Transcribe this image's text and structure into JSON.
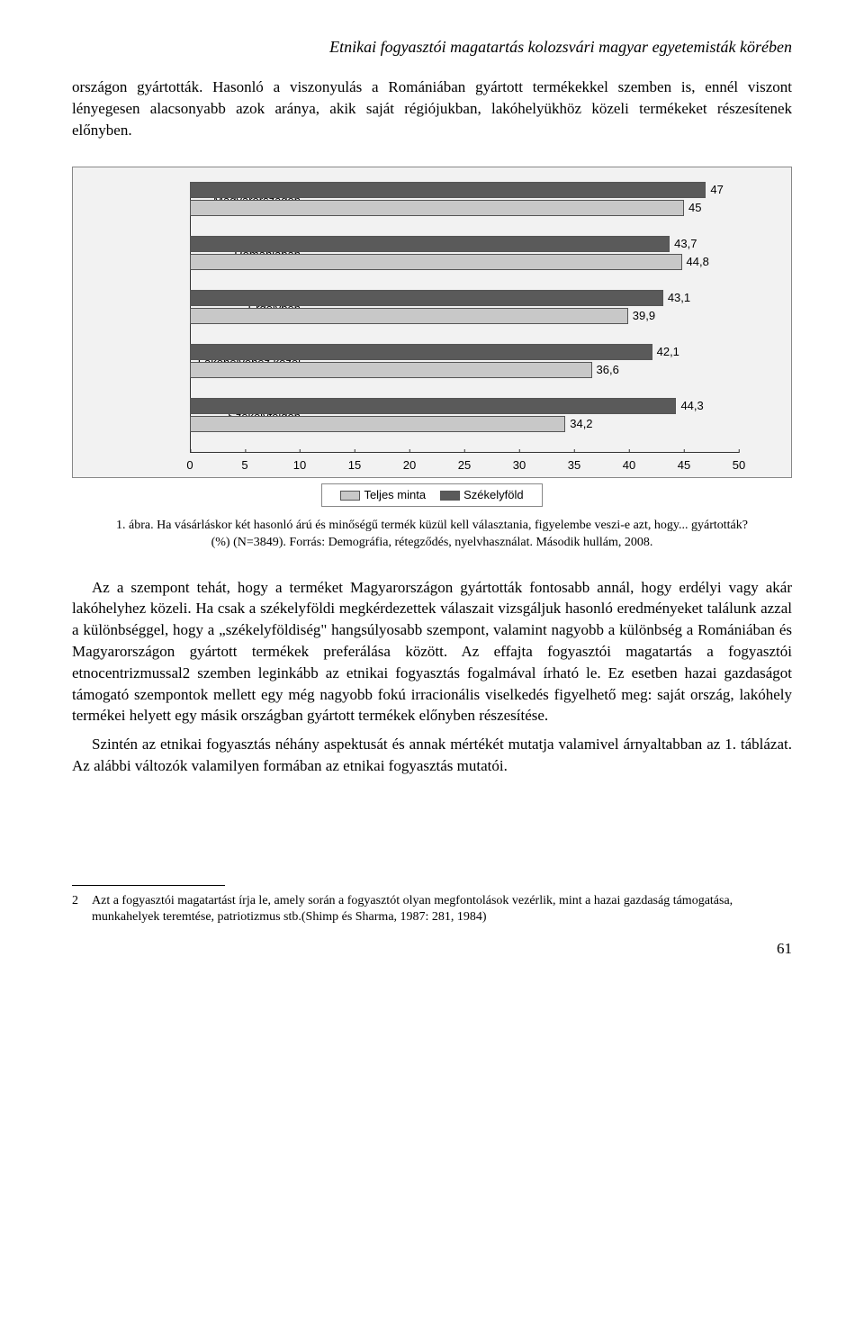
{
  "running_title": "Etnikai fogyasztói magatartás kolozsvári magyar egyetemisták körében",
  "intro_paragraph": "országon gyártották. Hasonló a viszonyulás a Romániában gyártott termékekkel szemben is, ennél viszont lényegesen alacsonyabb azok aránya, akik saját régiójukban, lakóhelyükhöz közeli termékeket részesítenek előnyben.",
  "chart": {
    "type": "grouped-horizontal-bar",
    "background_color": "#f2f2f2",
    "xmax": 50,
    "xtick_step": 5,
    "xticks": [
      "0",
      "5",
      "10",
      "15",
      "20",
      "25",
      "30",
      "35",
      "40",
      "45",
      "50"
    ],
    "series": [
      {
        "name": "Teljes minta",
        "color": "#c8c8c8"
      },
      {
        "name": "Székelyföld",
        "color": "#5a5a5a"
      }
    ],
    "categories": [
      {
        "label": "Magyarországon",
        "values": [
          47,
          45
        ],
        "labels": [
          "47",
          "45"
        ]
      },
      {
        "label": "Romániában",
        "values": [
          43.7,
          44.8
        ],
        "labels": [
          "43,7",
          "44,8"
        ]
      },
      {
        "label": "Erdélyben",
        "values": [
          43.1,
          39.9
        ],
        "labels": [
          "43,1",
          "39,9"
        ]
      },
      {
        "label": "Lakóhelyéhez közel",
        "values": [
          42.1,
          36.6
        ],
        "labels": [
          "42,1",
          "36,6"
        ]
      },
      {
        "label": "Székelyföldön",
        "values": [
          44.3,
          34.2
        ],
        "labels": [
          "44,3",
          "34,2"
        ]
      }
    ]
  },
  "caption": "1. ábra. Ha vásárláskor két hasonló árú és minőségű termék küzül kell választania, figyelembe veszi-e azt, hogy... gyártották? (%) (N=3849). Forrás: Demográfia, rétegződés, nyelvhasználat. Második hullám, 2008.",
  "para2": "Az a szempont tehát, hogy a terméket Magyarországon gyártották fontosabb annál, hogy erdélyi vagy akár lakóhelyhez közeli. Ha csak a székelyföldi megkérdezettek válaszait vizsgáljuk hasonló eredményeket találunk azzal a különbséggel, hogy a „székelyföldiség\" hangsúlyosabb szempont, valamint nagyobb a különbség a Romániában és Magyarországon gyártott termékek preferálása között. Az effajta fogyasztói magatartás a fogyasztói etnocentrizmussal2 szemben leginkább az etnikai fogyasztás fogalmával írható le. Ez esetben hazai gazdaságot támogató szempontok mellett egy még nagyobb fokú irracionális viselkedés figyelhető meg: saját ország, lakóhely termékei helyett egy másik országban gyártott termékek előnyben részesítése.",
  "para3": "Szintén az etnikai fogyasztás néhány aspektusát és annak mértékét mutatja valamivel árnyaltabban az 1. táblázat. Az alábbi változók valamilyen formában az etnikai fogyasztás mutatói.",
  "footnote": {
    "number": "2",
    "text": "Azt a fogyasztói magatartást írja le, amely során a fogyasztót olyan megfontolások vezérlik, mint a hazai gazdaság támogatása, munkahelyek teremtése, patriotizmus stb.(Shimp és Sharma, 1987: 281, 1984)"
  },
  "page_number": "61"
}
